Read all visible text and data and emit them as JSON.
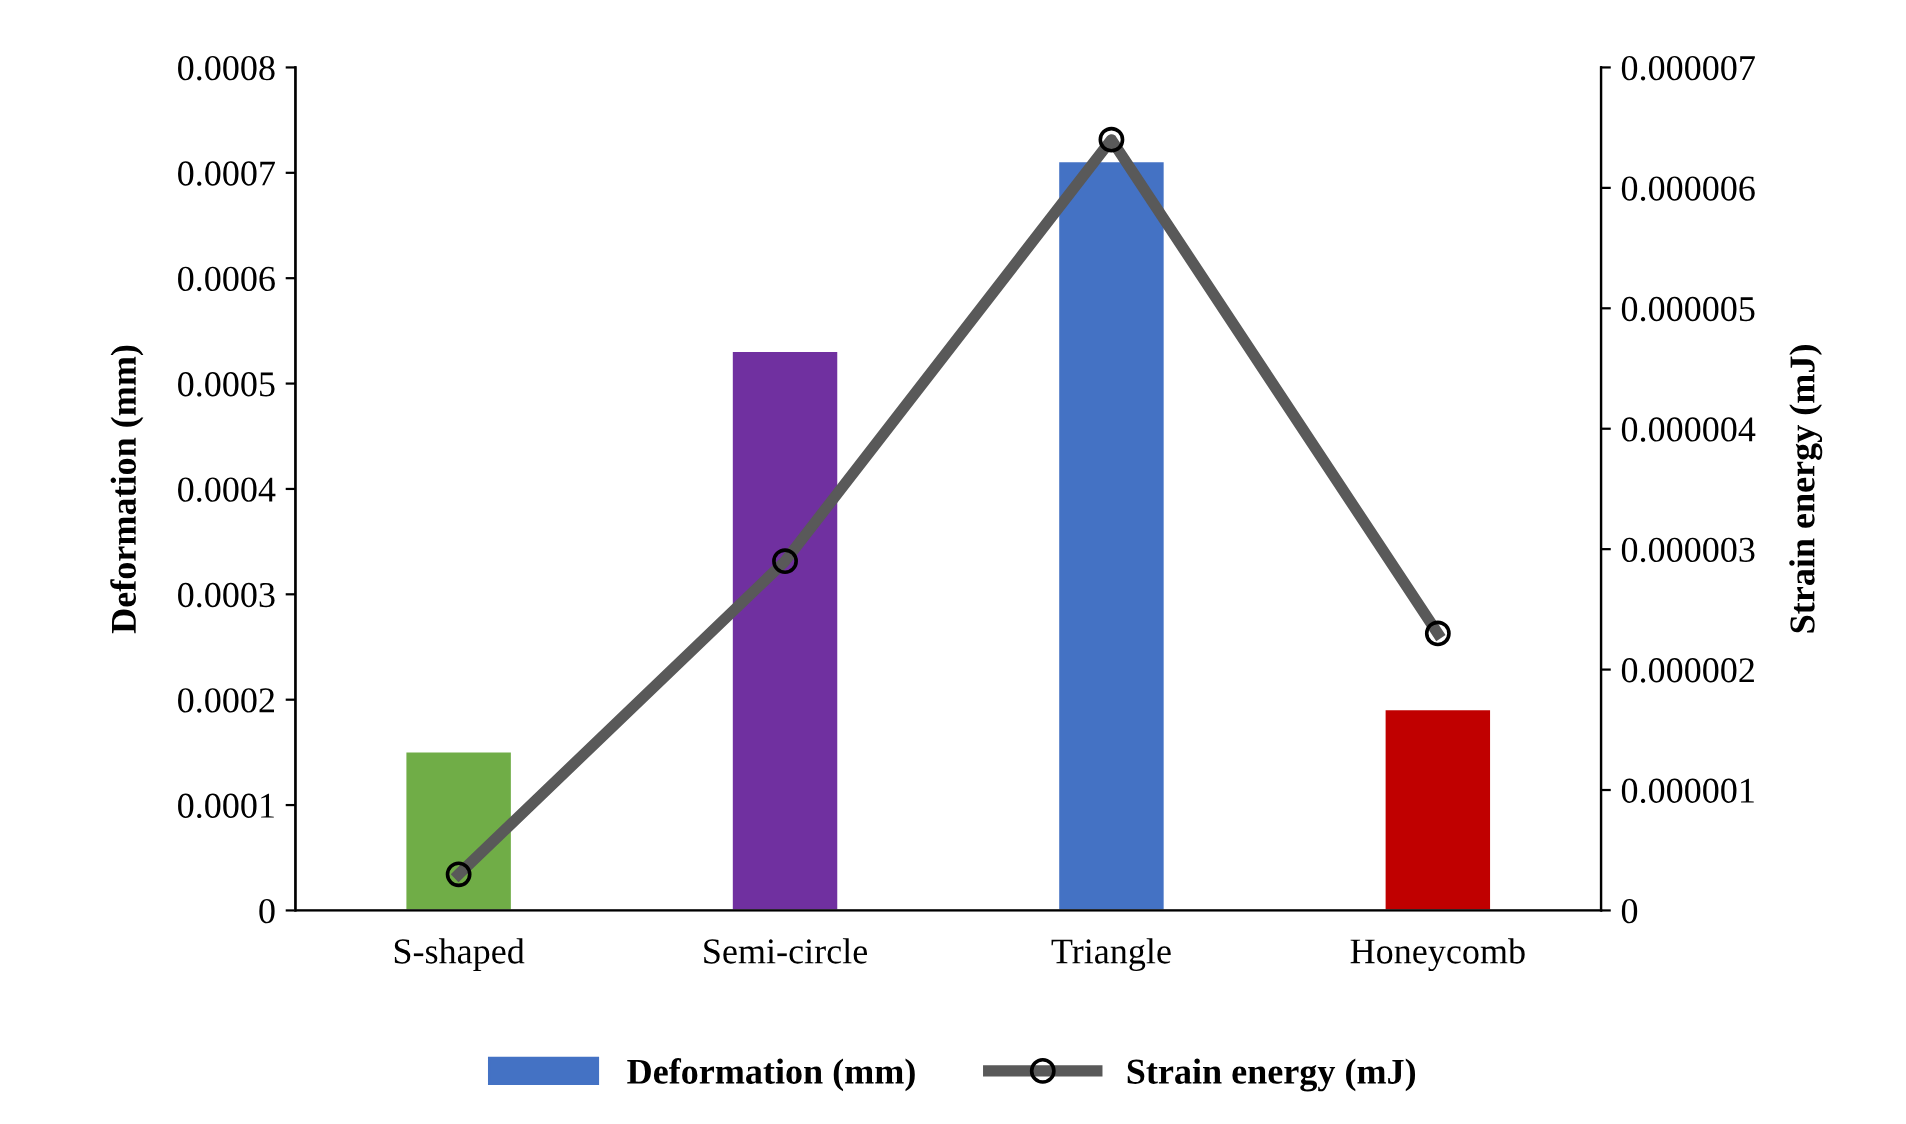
{
  "chart_data": {
    "type": "bar",
    "categories": [
      "S-shaped",
      "Semi-circle",
      "Triangle",
      "Honeycomb"
    ],
    "series": [
      {
        "name": "Deformation (mm)",
        "color": "#4472c4",
        "colors": [
          "#70ad47",
          "#7030a0",
          "#4472c4",
          "#c00000"
        ],
        "values": [
          0.00015,
          0.00053,
          0.00071,
          0.00019
        ]
      },
      {
        "name": "Strain energy (mJ)",
        "type": "line",
        "axis": "y2",
        "color": "#595959",
        "marker": "circle",
        "values": [
          3e-07,
          2.9e-06,
          6.4e-06,
          2.3e-06
        ]
      }
    ],
    "ylabel": "Deformation (mm)",
    "y2label": "Strain energy (mJ)",
    "ylim": [
      0,
      0.0008
    ],
    "yticks": [
      0,
      0.0001,
      0.0002,
      0.0003,
      0.0004,
      0.0005,
      0.0006,
      0.0007,
      0.0008
    ],
    "y2lim": [
      0,
      7e-06
    ],
    "y2ticks": [
      0,
      {
        "value": 1e-06,
        "label": "0.000001"
      },
      {
        "value": 2e-06,
        "label": "0.000002"
      },
      {
        "value": 3e-06,
        "label": "0.000003"
      },
      {
        "value": 4e-06,
        "label": "0.000004"
      },
      {
        "value": 5e-06,
        "label": "0.000005"
      },
      {
        "value": 6e-06,
        "label": "0.000006"
      },
      {
        "value": 7e-06,
        "label": "0.000007"
      }
    ],
    "grid": false,
    "legend": "bottom"
  }
}
